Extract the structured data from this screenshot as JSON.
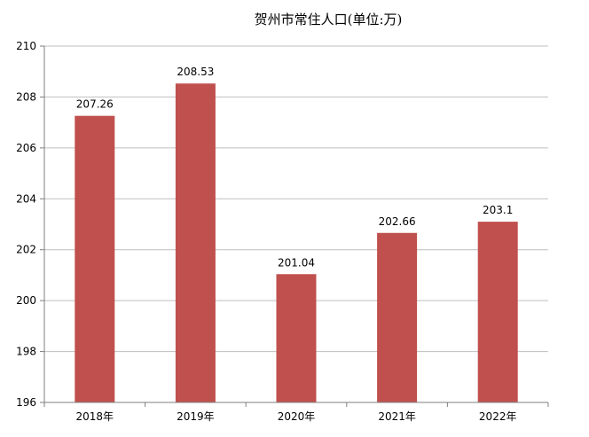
{
  "chart_data": {
    "type": "bar",
    "title": "贺州市常住人口(单位:万)",
    "categories": [
      "2018年",
      "2019年",
      "2020年",
      "2021年",
      "2022年"
    ],
    "values": [
      207.26,
      208.53,
      201.04,
      202.66,
      203.1
    ],
    "data_labels": [
      "207.26",
      "208.53",
      "201.04",
      "202.66",
      "203.1"
    ],
    "ylim": [
      196,
      210
    ],
    "y_ticks": [
      "196",
      "198",
      "200",
      "202",
      "204",
      "206",
      "208",
      "210"
    ],
    "xlabel": "",
    "ylabel": "",
    "grid": true,
    "legend": "none",
    "bar_color": "#C0504D",
    "grid_color": "#BFBFBF"
  }
}
